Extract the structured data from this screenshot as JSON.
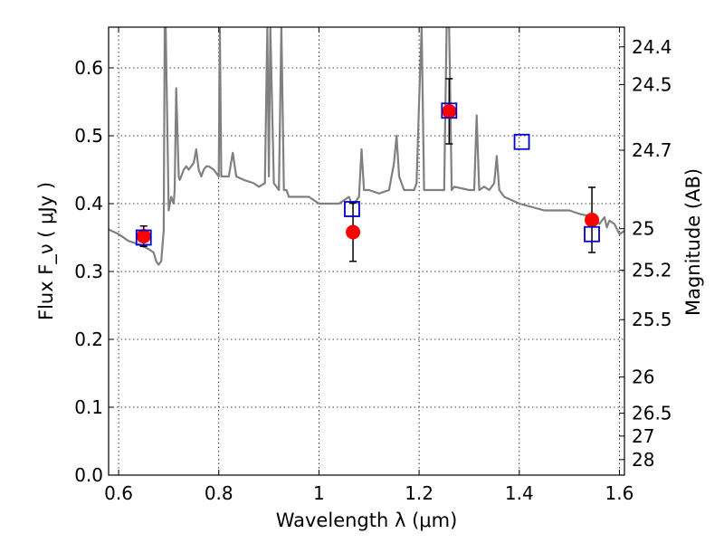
{
  "chart_data": {
    "type": "scatter",
    "xlabel": "Wavelength  λ (μm)",
    "ylabel": "Flux  F_ν  ( μJy )",
    "ylabel_right": "Magnitude (AB)",
    "xlim": [
      0.58,
      1.61
    ],
    "ylim": [
      0.0,
      0.66
    ],
    "x_ticks": [
      0.6,
      0.8,
      1.0,
      1.2,
      1.4,
      1.6
    ],
    "x_tick_labels": [
      "0.6",
      "0.8",
      "1",
      "1.2",
      "1.4",
      "1.6"
    ],
    "y_ticks": [
      0.0,
      0.1,
      0.2,
      0.3,
      0.4,
      0.5,
      0.6
    ],
    "y_tick_labels": [
      "0.0",
      "0.1",
      "0.2",
      "0.3",
      "0.4",
      "0.5",
      "0.6"
    ],
    "mag_ticks": [
      24.4,
      24.5,
      24.7,
      25,
      25.2,
      25.5,
      26,
      26.5,
      27,
      28
    ],
    "mag_tick_labels": [
      "24.4",
      "24.5",
      "24.7",
      "25",
      "25.2",
      "25.5",
      "26",
      "26.5",
      "27",
      "28"
    ],
    "grid": true,
    "colors": {
      "model_spectrum": "#808080",
      "observed": "#ff0000",
      "model_photometry": "#0000cc",
      "error_bar": "#000000"
    },
    "series": [
      {
        "kind": "model_spectrum",
        "x": [
          0.58,
          0.6,
          0.62,
          0.64,
          0.66,
          0.67,
          0.675,
          0.68,
          0.685,
          0.69,
          0.692,
          0.694,
          0.7,
          0.705,
          0.71,
          0.712,
          0.715,
          0.72,
          0.722,
          0.725,
          0.73,
          0.735,
          0.74,
          0.75,
          0.755,
          0.76,
          0.765,
          0.77,
          0.775,
          0.78,
          0.79,
          0.8,
          0.802,
          0.805,
          0.81,
          0.82,
          0.828,
          0.835,
          0.85,
          0.87,
          0.88,
          0.892,
          0.897,
          0.9,
          0.903,
          0.91,
          0.92,
          0.925,
          0.93,
          0.935,
          0.94,
          0.96,
          0.98,
          1.0,
          1.02,
          1.04,
          1.06,
          1.065,
          1.07,
          1.08,
          1.085,
          1.09,
          1.1,
          1.12,
          1.14,
          1.15,
          1.155,
          1.16,
          1.17,
          1.18,
          1.19,
          1.195,
          1.2,
          1.205,
          1.21,
          1.25,
          1.255,
          1.26,
          1.265,
          1.27,
          1.3,
          1.31,
          1.315,
          1.32,
          1.33,
          1.34,
          1.35,
          1.355,
          1.36,
          1.37,
          1.4,
          1.45,
          1.5,
          1.52,
          1.55,
          1.56,
          1.57,
          1.575,
          1.58,
          1.59,
          1.6,
          1.61
        ],
        "y": [
          0.362,
          0.355,
          0.345,
          0.34,
          0.333,
          0.328,
          0.315,
          0.31,
          0.315,
          0.36,
          0.66,
          0.66,
          0.39,
          0.41,
          0.4,
          0.42,
          0.57,
          0.44,
          0.435,
          0.44,
          0.45,
          0.455,
          0.45,
          0.46,
          0.48,
          0.45,
          0.44,
          0.45,
          0.455,
          0.455,
          0.45,
          0.44,
          0.66,
          0.44,
          0.44,
          0.44,
          0.475,
          0.44,
          0.435,
          0.43,
          0.425,
          0.43,
          0.66,
          0.44,
          0.66,
          0.43,
          0.42,
          0.66,
          0.42,
          0.42,
          0.41,
          0.41,
          0.41,
          0.4,
          0.4,
          0.4,
          0.41,
          0.4,
          0.4,
          0.41,
          0.48,
          0.42,
          0.42,
          0.415,
          0.42,
          0.46,
          0.5,
          0.44,
          0.42,
          0.42,
          0.42,
          0.43,
          0.55,
          0.66,
          0.42,
          0.42,
          0.66,
          0.66,
          0.42,
          0.425,
          0.42,
          0.42,
          0.53,
          0.42,
          0.425,
          0.42,
          0.43,
          0.47,
          0.42,
          0.41,
          0.4,
          0.39,
          0.39,
          0.385,
          0.38,
          0.37,
          0.38,
          0.365,
          0.375,
          0.37,
          0.355,
          0.36
        ]
      },
      {
        "kind": "observed",
        "points": [
          {
            "x": 0.65,
            "y": 0.352,
            "err": 0.015
          },
          {
            "x": 1.068,
            "y": 0.358,
            "err": 0.043
          },
          {
            "x": 1.26,
            "y": 0.536,
            "err": 0.048
          },
          {
            "x": 1.545,
            "y": 0.376,
            "err": 0.048
          }
        ]
      },
      {
        "kind": "model_photometry",
        "points": [
          {
            "x": 0.65,
            "y": 0.35
          },
          {
            "x": 1.066,
            "y": 0.392
          },
          {
            "x": 1.26,
            "y": 0.537
          },
          {
            "x": 1.405,
            "y": 0.491
          },
          {
            "x": 1.545,
            "y": 0.355
          }
        ]
      }
    ]
  }
}
